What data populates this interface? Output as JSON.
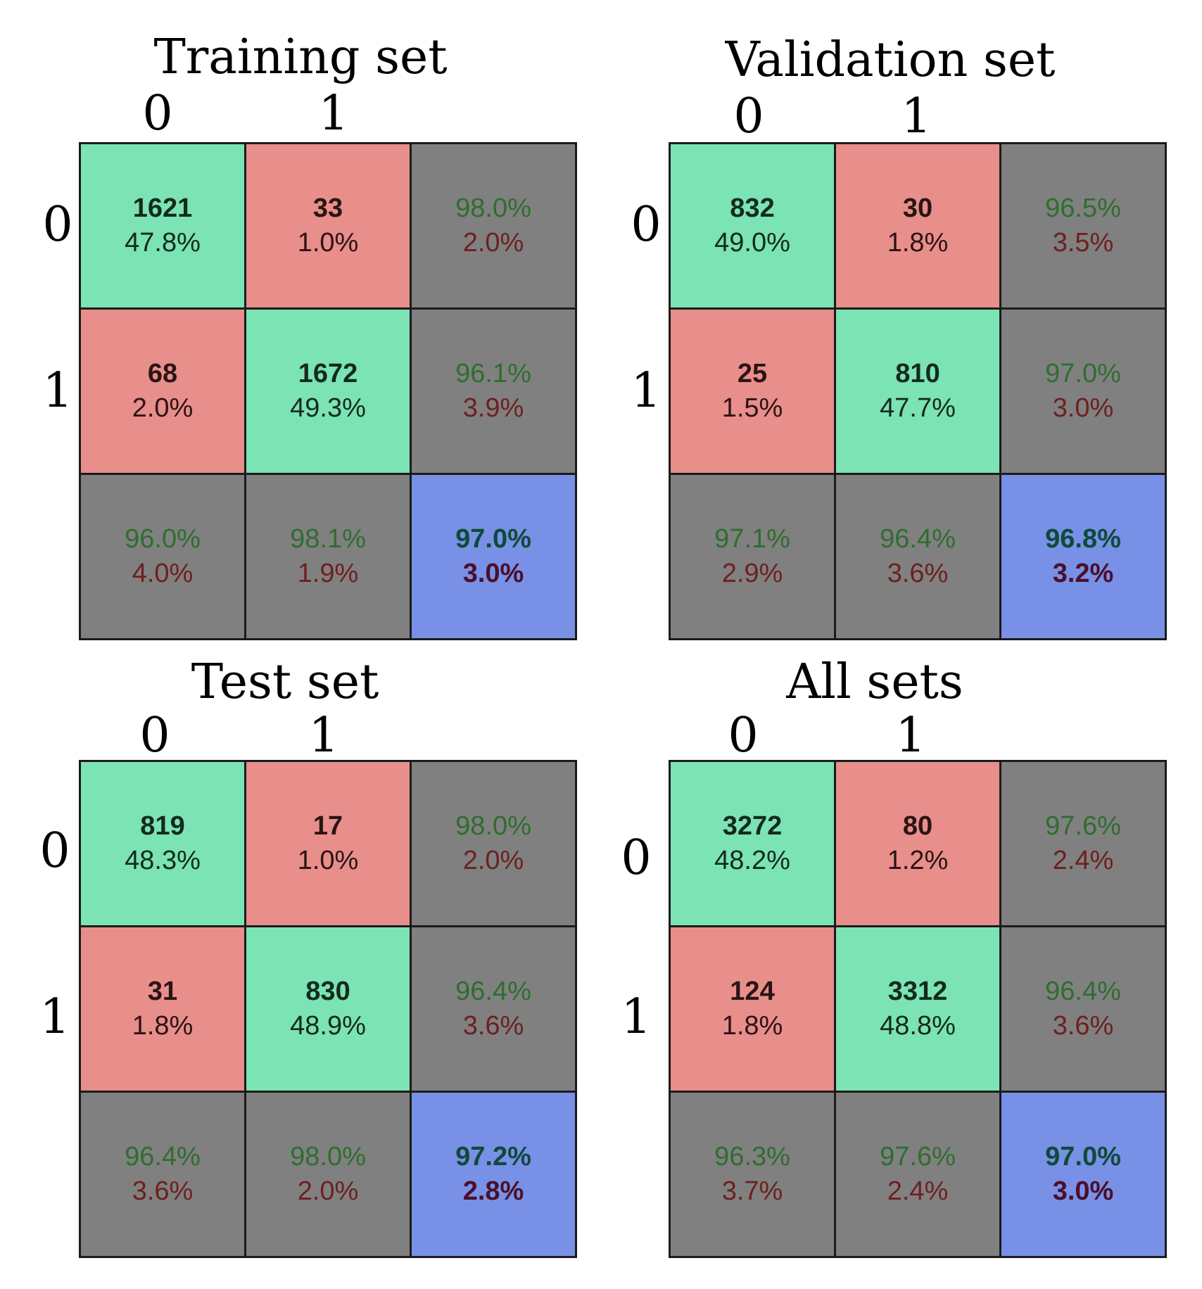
{
  "chart_data": [
    {
      "type": "table",
      "title": "Training set",
      "class_labels": [
        "0",
        "1"
      ],
      "cells": [
        [
          {
            "l1": "1621",
            "l2": "47.8%",
            "kind": "correct"
          },
          {
            "l1": "33",
            "l2": "1.0%",
            "kind": "wrong"
          },
          {
            "l1": "98.0%",
            "l2": "2.0%",
            "kind": "summary"
          }
        ],
        [
          {
            "l1": "68",
            "l2": "2.0%",
            "kind": "wrong"
          },
          {
            "l1": "1672",
            "l2": "49.3%",
            "kind": "correct"
          },
          {
            "l1": "96.1%",
            "l2": "3.9%",
            "kind": "summary"
          }
        ],
        [
          {
            "l1": "96.0%",
            "l2": "4.0%",
            "kind": "summary"
          },
          {
            "l1": "98.1%",
            "l2": "1.9%",
            "kind": "summary"
          },
          {
            "l1": "97.0%",
            "l2": "3.0%",
            "kind": "overall"
          }
        ]
      ]
    },
    {
      "type": "table",
      "title": "Validation set",
      "class_labels": [
        "0",
        "1"
      ],
      "cells": [
        [
          {
            "l1": "832",
            "l2": "49.0%",
            "kind": "correct"
          },
          {
            "l1": "30",
            "l2": "1.8%",
            "kind": "wrong"
          },
          {
            "l1": "96.5%",
            "l2": "3.5%",
            "kind": "summary"
          }
        ],
        [
          {
            "l1": "25",
            "l2": "1.5%",
            "kind": "wrong"
          },
          {
            "l1": "810",
            "l2": "47.7%",
            "kind": "correct"
          },
          {
            "l1": "97.0%",
            "l2": "3.0%",
            "kind": "summary"
          }
        ],
        [
          {
            "l1": "97.1%",
            "l2": "2.9%",
            "kind": "summary"
          },
          {
            "l1": "96.4%",
            "l2": "3.6%",
            "kind": "summary"
          },
          {
            "l1": "96.8%",
            "l2": "3.2%",
            "kind": "overall"
          }
        ]
      ]
    },
    {
      "type": "table",
      "title": "Test set",
      "class_labels": [
        "0",
        "1"
      ],
      "cells": [
        [
          {
            "l1": "819",
            "l2": "48.3%",
            "kind": "correct"
          },
          {
            "l1": "17",
            "l2": "1.0%",
            "kind": "wrong"
          },
          {
            "l1": "98.0%",
            "l2": "2.0%",
            "kind": "summary"
          }
        ],
        [
          {
            "l1": "31",
            "l2": "1.8%",
            "kind": "wrong"
          },
          {
            "l1": "830",
            "l2": "48.9%",
            "kind": "correct"
          },
          {
            "l1": "96.4%",
            "l2": "3.6%",
            "kind": "summary"
          }
        ],
        [
          {
            "l1": "96.4%",
            "l2": "3.6%",
            "kind": "summary"
          },
          {
            "l1": "98.0%",
            "l2": "2.0%",
            "kind": "summary"
          },
          {
            "l1": "97.2%",
            "l2": "2.8%",
            "kind": "overall"
          }
        ]
      ]
    },
    {
      "type": "table",
      "title": "All sets",
      "class_labels": [
        "0",
        "1"
      ],
      "cells": [
        [
          {
            "l1": "3272",
            "l2": "48.2%",
            "kind": "correct"
          },
          {
            "l1": "80",
            "l2": "1.2%",
            "kind": "wrong"
          },
          {
            "l1": "97.6%",
            "l2": "2.4%",
            "kind": "summary"
          }
        ],
        [
          {
            "l1": "124",
            "l2": "1.8%",
            "kind": "wrong"
          },
          {
            "l1": "3312",
            "l2": "48.8%",
            "kind": "correct"
          },
          {
            "l1": "96.4%",
            "l2": "3.6%",
            "kind": "summary"
          }
        ],
        [
          {
            "l1": "96.3%",
            "l2": "3.7%",
            "kind": "summary"
          },
          {
            "l1": "97.6%",
            "l2": "2.4%",
            "kind": "summary"
          },
          {
            "l1": "97.0%",
            "l2": "3.0%",
            "kind": "overall"
          }
        ]
      ]
    }
  ],
  "colors": {
    "correct": "#7be3b4",
    "wrong": "#e88e8b",
    "summary": "#808080",
    "overall": "#7891e6"
  }
}
